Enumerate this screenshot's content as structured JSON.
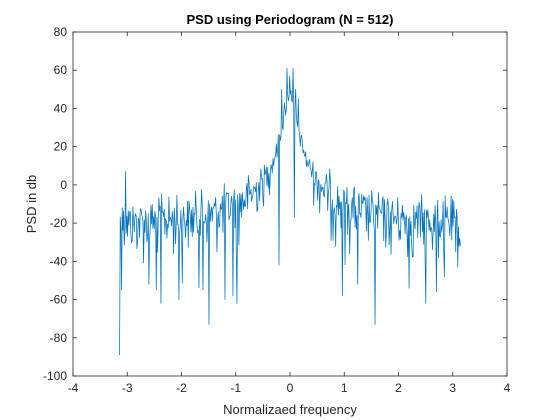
{
  "chart_data": {
    "type": "line",
    "title": "PSD using Periodogram (N = 512)",
    "xlabel": "Normalizaed frequency",
    "ylabel": "PSD in db",
    "xlim": [
      -4,
      4
    ],
    "ylim": [
      -100,
      80
    ],
    "xticks": [
      -4,
      -3,
      -2,
      -1,
      0,
      1,
      2,
      3,
      4
    ],
    "yticks": [
      -100,
      -80,
      -60,
      -40,
      -20,
      0,
      20,
      40,
      60,
      80
    ],
    "grid": false,
    "legend": "none",
    "series": [
      {
        "color": "#0072BD",
        "x_range": [
          -3.1416,
          3.1416
        ],
        "n_points": 512,
        "envelope": {
          "x": [
            -3.14,
            -3.0,
            -2.5,
            -2.0,
            -1.5,
            -1.0,
            -0.7,
            -0.5,
            -0.3,
            -0.15,
            -0.05,
            0.0,
            0.05,
            0.15,
            0.3,
            0.5,
            0.7,
            1.0,
            1.5,
            2.0,
            2.5,
            3.0,
            3.14
          ],
          "y": [
            -18,
            -17,
            -16,
            -15,
            -13,
            -8,
            -2,
            4,
            14,
            30,
            46,
            50,
            46,
            30,
            14,
            4,
            -2,
            -8,
            -13,
            -15,
            -16,
            -17,
            -18
          ]
        },
        "highlights": [
          {
            "x": -3.14,
            "y": -89
          },
          {
            "x": -3.09,
            "y": -12
          },
          {
            "x": -3.03,
            "y": 7
          },
          {
            "x": -2.6,
            "y": -52
          },
          {
            "x": -2.47,
            "y": -55
          },
          {
            "x": -2.38,
            "y": -62
          },
          {
            "x": -2.05,
            "y": -60
          },
          {
            "x": -1.6,
            "y": -55
          },
          {
            "x": -1.5,
            "y": -73
          },
          {
            "x": -1.2,
            "y": -60
          },
          {
            "x": -1.05,
            "y": -58
          },
          {
            "x": -0.98,
            "y": -62
          },
          {
            "x": -0.2,
            "y": -42
          },
          {
            "x": -0.15,
            "y": 50
          },
          {
            "x": -0.1,
            "y": 43
          },
          {
            "x": -0.05,
            "y": 61
          },
          {
            "x": 0.0,
            "y": 57
          },
          {
            "x": 0.05,
            "y": 61
          },
          {
            "x": 0.1,
            "y": 50
          },
          {
            "x": 0.15,
            "y": 45
          },
          {
            "x": 0.08,
            "y": -17
          },
          {
            "x": 0.96,
            "y": -58
          },
          {
            "x": 1.25,
            "y": -52
          },
          {
            "x": 1.57,
            "y": -73
          },
          {
            "x": 2.2,
            "y": -54
          },
          {
            "x": 2.5,
            "y": -62
          },
          {
            "x": 2.7,
            "y": -56
          },
          {
            "x": 2.85,
            "y": -48
          },
          {
            "x": 3.05,
            "y": -35
          },
          {
            "x": 3.13,
            "y": -28
          }
        ]
      }
    ]
  }
}
